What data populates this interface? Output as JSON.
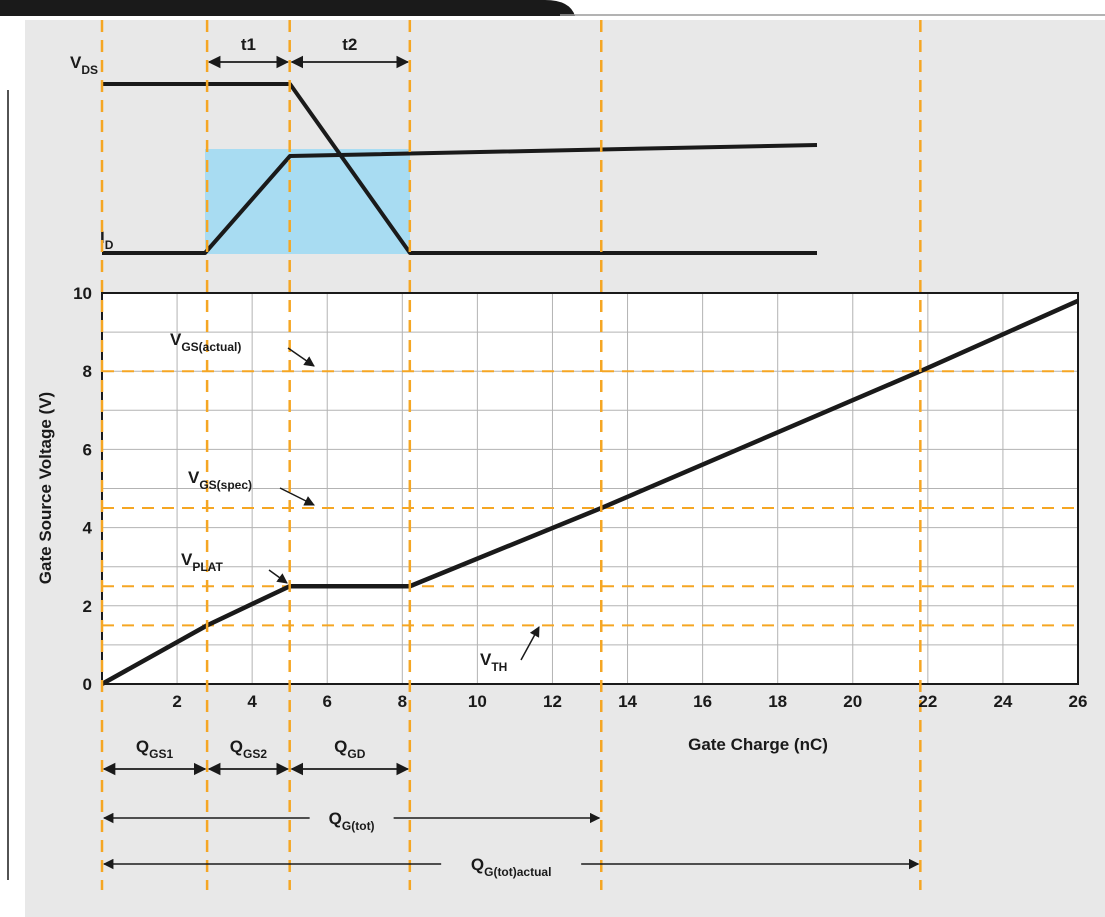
{
  "chart_data": {
    "type": "line",
    "xlabel": "Gate Charge (nC)",
    "ylabel": "Gate Source Voltage (V)",
    "xlim": [
      0,
      26
    ],
    "ylim": [
      0,
      10
    ],
    "x_ticks": [
      "2",
      "4",
      "6",
      "8",
      "10",
      "12",
      "14",
      "16",
      "18",
      "20",
      "22",
      "24",
      "26"
    ],
    "y_ticks": [
      "0",
      "2",
      "4",
      "6",
      "8",
      "10"
    ],
    "grid": true,
    "series": [
      {
        "x": [
          0,
          2.8,
          5.0,
          8.2,
          13.3,
          21.8,
          26.0
        ],
        "y": [
          0,
          1.5,
          2.5,
          2.5,
          4.5,
          8.0,
          9.8
        ]
      }
    ],
    "reference_levels": [
      {
        "main": "V",
        "sub": "GS(actual)",
        "y": 8.0
      },
      {
        "main": "V",
        "sub": "GS(spec)",
        "y": 4.5
      },
      {
        "main": "V",
        "sub": "PLAT",
        "y": 2.5
      },
      {
        "main": "V",
        "sub": "TH",
        "y": 1.5
      }
    ],
    "reference_charges": [
      0,
      2.8,
      5.0,
      8.2,
      13.3,
      21.8
    ],
    "charge_intervals": [
      {
        "main": "Q",
        "sub": "GS1",
        "from": 0,
        "to": 2.8
      },
      {
        "main": "Q",
        "sub": "GS2",
        "from": 2.8,
        "to": 5.0
      },
      {
        "main": "Q",
        "sub": "GD",
        "from": 5.0,
        "to": 8.2
      },
      {
        "main": "Q",
        "sub": "G(tot)",
        "from": 0,
        "to": 13.3
      },
      {
        "main": "Q",
        "sub": "G(tot)actual",
        "from": 0,
        "to": 21.8
      }
    ],
    "timing_intervals": [
      {
        "label": "t1",
        "from": 2.8,
        "to": 5.0
      },
      {
        "label": "t2",
        "from": 5.0,
        "to": 8.2
      }
    ],
    "switching_waveforms": [
      {
        "main": "V",
        "sub": "DS"
      },
      {
        "main": "I",
        "sub": "D"
      }
    ],
    "colors": {
      "background": "#e8e8e8",
      "plot_bg": "#ffffff",
      "grid": "#b3b3b3",
      "curve": "#1a1a1a",
      "dashed": "#f5a623",
      "highlight": "#a8dcf2",
      "header_bar": "#1a1a1a"
    }
  }
}
